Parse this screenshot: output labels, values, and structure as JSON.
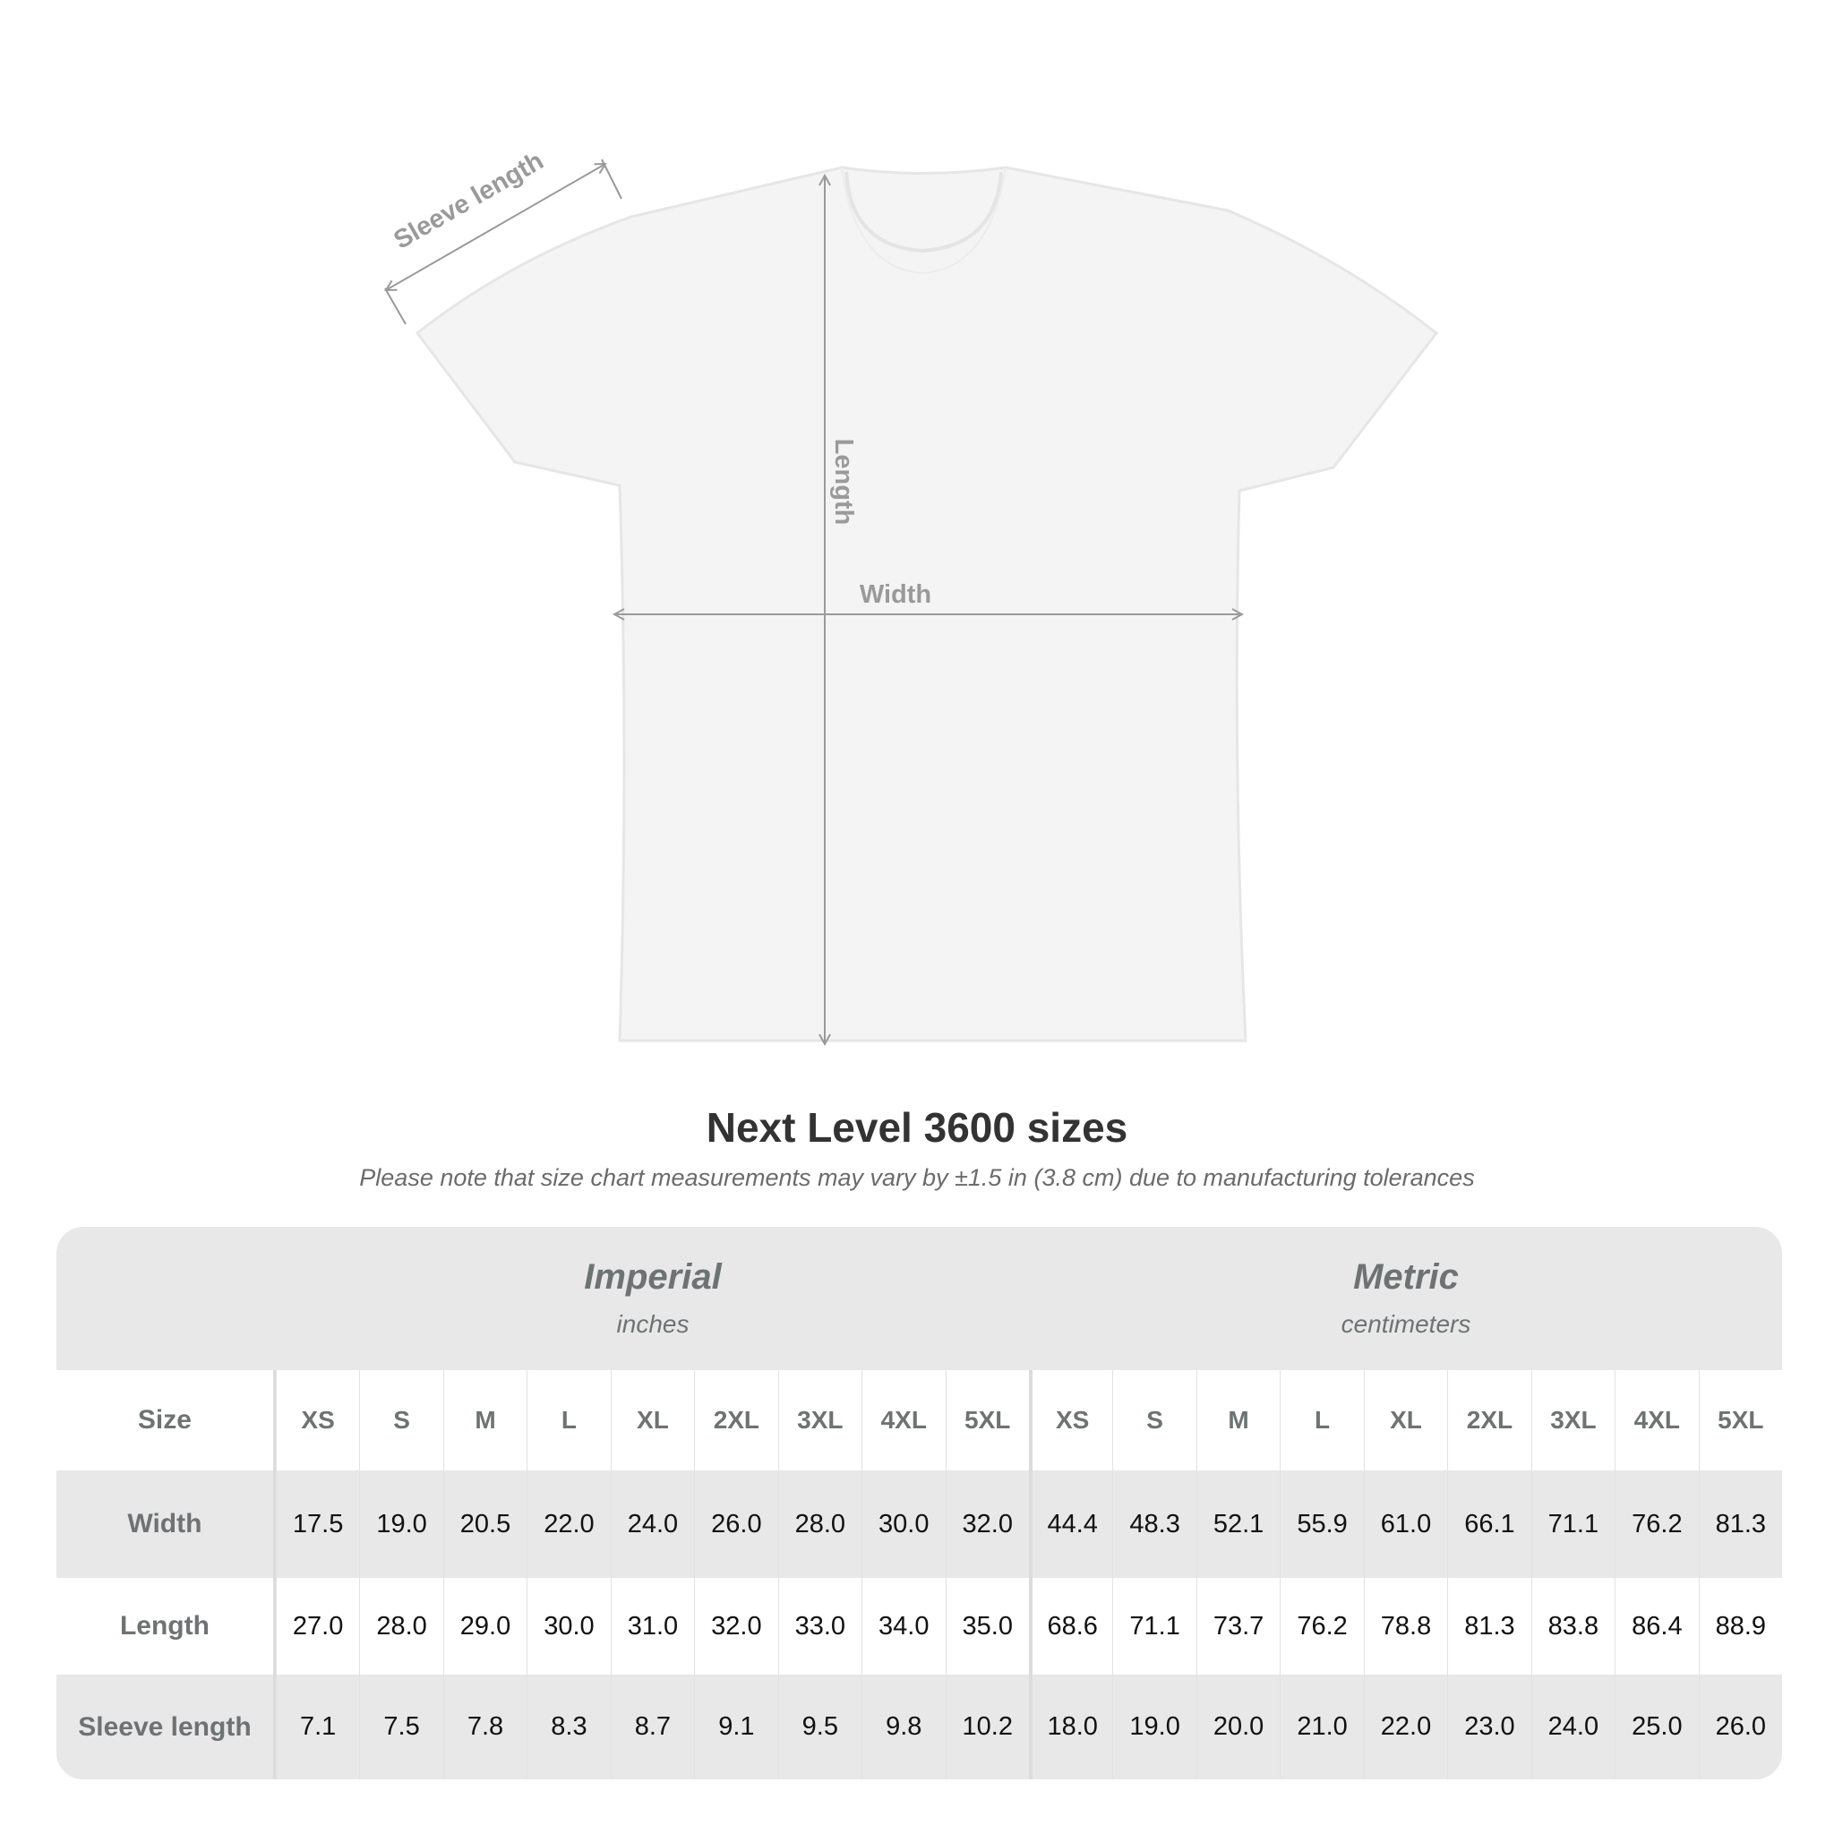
{
  "diagram": {
    "sleeve_label": "Sleeve length",
    "length_label": "Length",
    "width_label": "Width"
  },
  "title": "Next Level 3600 sizes",
  "note": "Please note that size chart measurements may vary by ±1.5 in (3.8 cm) due to manufacturing tolerances",
  "table": {
    "imperial": {
      "name": "Imperial",
      "unit": "inches"
    },
    "metric": {
      "name": "Metric",
      "unit": "centimeters"
    },
    "size_label": "Size",
    "sizes": [
      "XS",
      "S",
      "M",
      "L",
      "XL",
      "2XL",
      "3XL",
      "4XL",
      "5XL"
    ],
    "rows": [
      {
        "label": "Width",
        "imperial": [
          "17.5",
          "19.0",
          "20.5",
          "22.0",
          "24.0",
          "26.0",
          "28.0",
          "30.0",
          "32.0"
        ],
        "metric": [
          "44.4",
          "48.3",
          "52.1",
          "55.9",
          "61.0",
          "66.1",
          "71.1",
          "76.2",
          "81.3"
        ]
      },
      {
        "label": "Length",
        "imperial": [
          "27.0",
          "28.0",
          "29.0",
          "30.0",
          "31.0",
          "32.0",
          "33.0",
          "34.0",
          "35.0"
        ],
        "metric": [
          "68.6",
          "71.1",
          "73.7",
          "76.2",
          "78.8",
          "81.3",
          "83.8",
          "86.4",
          "88.9"
        ]
      },
      {
        "label": "Sleeve length",
        "imperial": [
          "7.1",
          "7.5",
          "7.8",
          "8.3",
          "8.7",
          "9.1",
          "9.5",
          "9.8",
          "10.2"
        ],
        "metric": [
          "18.0",
          "19.0",
          "20.0",
          "21.0",
          "22.0",
          "23.0",
          "24.0",
          "25.0",
          "26.0"
        ]
      }
    ]
  }
}
